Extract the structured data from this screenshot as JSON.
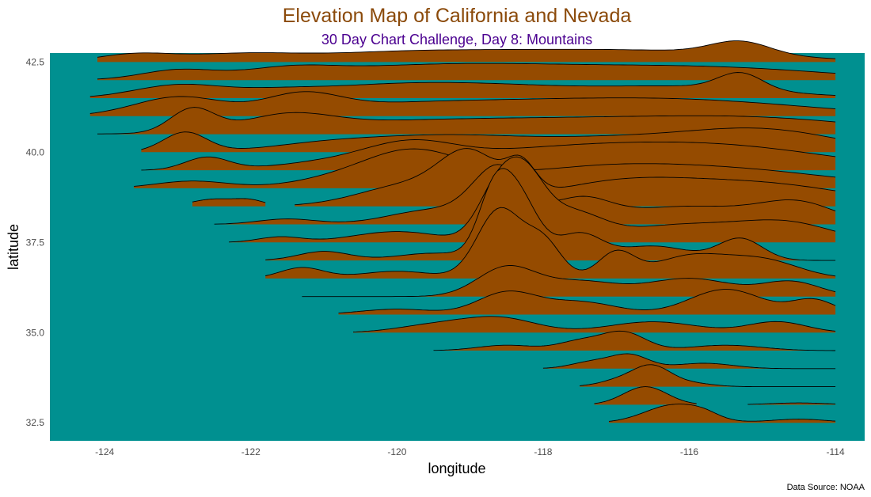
{
  "chart_data": {
    "type": "area",
    "subtype": "ridgeline",
    "title": "Elevation Map of California and Nevada",
    "subtitle": "30 Day Chart Challenge, Day 8: Mountains",
    "xlabel": "longitude",
    "ylabel": "latitude",
    "caption": "Data Source: NOAA",
    "xlim": [
      -124.75,
      -113.6
    ],
    "ylim": [
      32.0,
      42.75
    ],
    "x_ticks": [
      -124,
      -122,
      -120,
      -118,
      -116,
      -114
    ],
    "y_ticks": [
      32.5,
      35.0,
      37.5,
      40.0,
      42.5
    ],
    "grid": false,
    "legend": "none",
    "colors": {
      "panel_background": "#009090",
      "ridge_fill": "#954B00",
      "ridge_line": "#000000",
      "title": "#8B4A0A",
      "subtitle": "#4B0090"
    },
    "ridges": [
      {
        "lat": 42.5,
        "start": -124.1,
        "end": -114.0,
        "peaks": [
          [
            -123.6,
            0.2,
            0.5
          ],
          [
            -122.2,
            0.2,
            0.8
          ],
          [
            -120.0,
            0.25,
            1.2
          ],
          [
            -118.0,
            0.2,
            1.2
          ],
          [
            -116.0,
            0.25,
            1.4
          ],
          [
            -115.3,
            0.35,
            0.4
          ]
        ]
      },
      {
        "lat": 42.0,
        "start": -124.1,
        "end": -114.0,
        "peaks": [
          [
            -123.0,
            0.25,
            0.5
          ],
          [
            -121.5,
            0.2,
            0.6
          ],
          [
            -120.0,
            0.3,
            1.5
          ],
          [
            -118.0,
            0.25,
            1.5
          ],
          [
            -115.5,
            0.3,
            1.5
          ]
        ]
      },
      {
        "lat": 41.5,
        "start": -124.2,
        "end": -114.0,
        "peaks": [
          [
            -123.0,
            0.35,
            0.6
          ],
          [
            -121.7,
            0.12,
            0.6
          ],
          [
            -120.2,
            0.3,
            1.2
          ],
          [
            -118.5,
            0.25,
            1.2
          ],
          [
            -116.0,
            0.3,
            1.2
          ],
          [
            -115.3,
            0.45,
            0.3
          ]
        ]
      },
      {
        "lat": 41.0,
        "start": -124.2,
        "end": -114.0,
        "peaks": [
          [
            -123.0,
            0.5,
            0.6
          ],
          [
            -121.3,
            0.45,
            0.5
          ],
          [
            -120.0,
            0.3,
            1.5
          ],
          [
            -117.5,
            0.3,
            1.5
          ],
          [
            -115.5,
            0.3,
            1.5
          ]
        ]
      },
      {
        "lat": 40.5,
        "start": -124.1,
        "end": -114.0,
        "peaks": [
          [
            -122.8,
            0.65,
            0.3
          ],
          [
            -121.5,
            0.4,
            0.6
          ],
          [
            -120.0,
            0.3,
            1.5
          ],
          [
            -117.5,
            0.3,
            1.5
          ],
          [
            -115.0,
            0.4,
            1.5
          ]
        ]
      },
      {
        "lat": 40.0,
        "start": -123.5,
        "end": -114.0,
        "peaks": [
          [
            -122.9,
            0.55,
            0.3
          ],
          [
            -121.0,
            0.2,
            0.8
          ],
          [
            -119.5,
            0.35,
            1.0
          ],
          [
            -117.0,
            0.4,
            1.5
          ],
          [
            -114.9,
            0.5,
            1.0
          ]
        ]
      },
      {
        "lat": 39.5,
        "start": -123.5,
        "end": -114.0,
        "peaks": [
          [
            -122.6,
            0.35,
            0.3
          ],
          [
            -120.8,
            0.2,
            0.8
          ],
          [
            -119.8,
            0.5,
            0.6
          ],
          [
            -118.0,
            0.5,
            1.5
          ],
          [
            -115.5,
            0.6,
            1.5
          ]
        ]
      },
      {
        "lat": 39.0,
        "start": -123.6,
        "end": -114.0,
        "peaks": [
          [
            -122.8,
            0.2,
            0.5
          ],
          [
            -121.0,
            0.15,
            0.6
          ],
          [
            -119.8,
            1.0,
            0.7
          ],
          [
            -117.5,
            0.4,
            1.2
          ],
          [
            -115.5,
            0.5,
            1.5
          ]
        ]
      },
      {
        "lat": 38.5,
        "start": -122.8,
        "end": -121.8,
        "peaks": [
          [
            -122.5,
            0.2,
            0.3
          ],
          [
            -122.0,
            0.15,
            0.2
          ]
        ]
      },
      {
        "lat": 38.5,
        "start": -121.4,
        "end": -114.0,
        "peaks": [
          [
            -119.8,
            0.6,
            0.7
          ],
          [
            -119.0,
            1.2,
            0.4
          ],
          [
            -118.3,
            0.8,
            0.2
          ],
          [
            -117.0,
            0.6,
            1.0
          ],
          [
            -115.0,
            0.6,
            1.2
          ]
        ]
      },
      {
        "lat": 38.0,
        "start": -122.5,
        "end": -114.0,
        "peaks": [
          [
            -121.5,
            0.15,
            0.4
          ],
          [
            -119.5,
            0.4,
            0.6
          ],
          [
            -118.6,
            1.5,
            0.35
          ],
          [
            -117.5,
            0.6,
            0.4
          ],
          [
            -116.0,
            0.5,
            1.0
          ],
          [
            -114.5,
            0.5,
            0.5
          ]
        ]
      },
      {
        "lat": 37.5,
        "start": -122.3,
        "end": -114.0,
        "peaks": [
          [
            -121.6,
            0.15,
            0.3
          ],
          [
            -120.0,
            0.3,
            0.6
          ],
          [
            -118.7,
            0.9,
            0.25
          ],
          [
            -118.3,
            1.9,
            0.3
          ],
          [
            -117.6,
            0.7,
            0.4
          ],
          [
            -116.0,
            0.5,
            1.0
          ],
          [
            -114.6,
            0.4,
            0.6
          ]
        ]
      },
      {
        "lat": 37.0,
        "start": -121.8,
        "end": -114.0,
        "peaks": [
          [
            -121.0,
            0.25,
            0.35
          ],
          [
            -119.5,
            0.2,
            0.5
          ],
          [
            -118.7,
            1.0,
            0.2
          ],
          [
            -118.4,
            2.0,
            0.3
          ],
          [
            -117.5,
            0.7,
            0.3
          ],
          [
            -116.5,
            0.4,
            0.5
          ],
          [
            -115.3,
            0.6,
            0.3
          ]
        ]
      },
      {
        "lat": 36.5,
        "start": -121.8,
        "end": -114.0,
        "peaks": [
          [
            -121.3,
            0.3,
            0.3
          ],
          [
            -120.0,
            0.2,
            0.5
          ],
          [
            -118.6,
            1.9,
            0.3
          ],
          [
            -118.0,
            1.0,
            0.25
          ],
          [
            -117.0,
            0.7,
            0.25
          ],
          [
            -116.0,
            0.6,
            0.5
          ],
          [
            -115.0,
            0.5,
            0.5
          ]
        ]
      },
      {
        "lat": 36.0,
        "start": -121.3,
        "end": -114.0,
        "peaks": [
          [
            -118.5,
            0.8,
            0.4
          ],
          [
            -117.5,
            0.4,
            0.5
          ],
          [
            -116.0,
            0.5,
            0.6
          ],
          [
            -114.6,
            0.4,
            0.4
          ]
        ]
      },
      {
        "lat": 35.5,
        "start": -120.8,
        "end": -114.0,
        "peaks": [
          [
            -120.0,
            0.15,
            0.5
          ],
          [
            -118.5,
            0.6,
            0.4
          ],
          [
            -117.5,
            0.35,
            0.5
          ],
          [
            -115.5,
            0.7,
            0.5
          ],
          [
            -114.3,
            0.4,
            0.3
          ]
        ]
      },
      {
        "lat": 35.0,
        "start": -120.6,
        "end": -114.0,
        "peaks": [
          [
            -119.5,
            0.2,
            0.5
          ],
          [
            -118.6,
            0.4,
            0.5
          ],
          [
            -116.5,
            0.3,
            0.6
          ],
          [
            -114.8,
            0.3,
            0.4
          ]
        ]
      },
      {
        "lat": 34.5,
        "start": -119.5,
        "end": -114.0,
        "peaks": [
          [
            -118.5,
            0.15,
            0.4
          ],
          [
            -117.5,
            0.25,
            0.3
          ],
          [
            -116.9,
            0.5,
            0.3
          ],
          [
            -115.5,
            0.15,
            0.5
          ]
        ]
      },
      {
        "lat": 34.0,
        "start": -118.0,
        "end": -114.0,
        "peaks": [
          [
            -117.3,
            0.2,
            0.3
          ],
          [
            -116.8,
            0.35,
            0.25
          ],
          [
            -115.8,
            0.15,
            0.4
          ]
        ]
      },
      {
        "lat": 33.5,
        "start": -117.5,
        "end": -114.0,
        "peaks": [
          [
            -116.9,
            0.2,
            0.3
          ],
          [
            -116.5,
            0.5,
            0.25
          ],
          [
            -116.0,
            0.1,
            0.3
          ]
        ]
      },
      {
        "lat": 33.0,
        "start": -117.3,
        "end": -115.9,
        "peaks": [
          [
            -116.6,
            0.5,
            0.3
          ]
        ]
      },
      {
        "lat": 33.0,
        "start": -115.2,
        "end": -114.0,
        "peaks": [
          [
            -114.5,
            0.05,
            0.4
          ]
        ]
      },
      {
        "lat": 32.5,
        "start": -117.1,
        "end": -114.0,
        "peaks": [
          [
            -116.2,
            0.5,
            0.4
          ],
          [
            -115.8,
            0.1,
            0.2
          ],
          [
            -114.5,
            0.1,
            0.4
          ]
        ]
      }
    ]
  }
}
